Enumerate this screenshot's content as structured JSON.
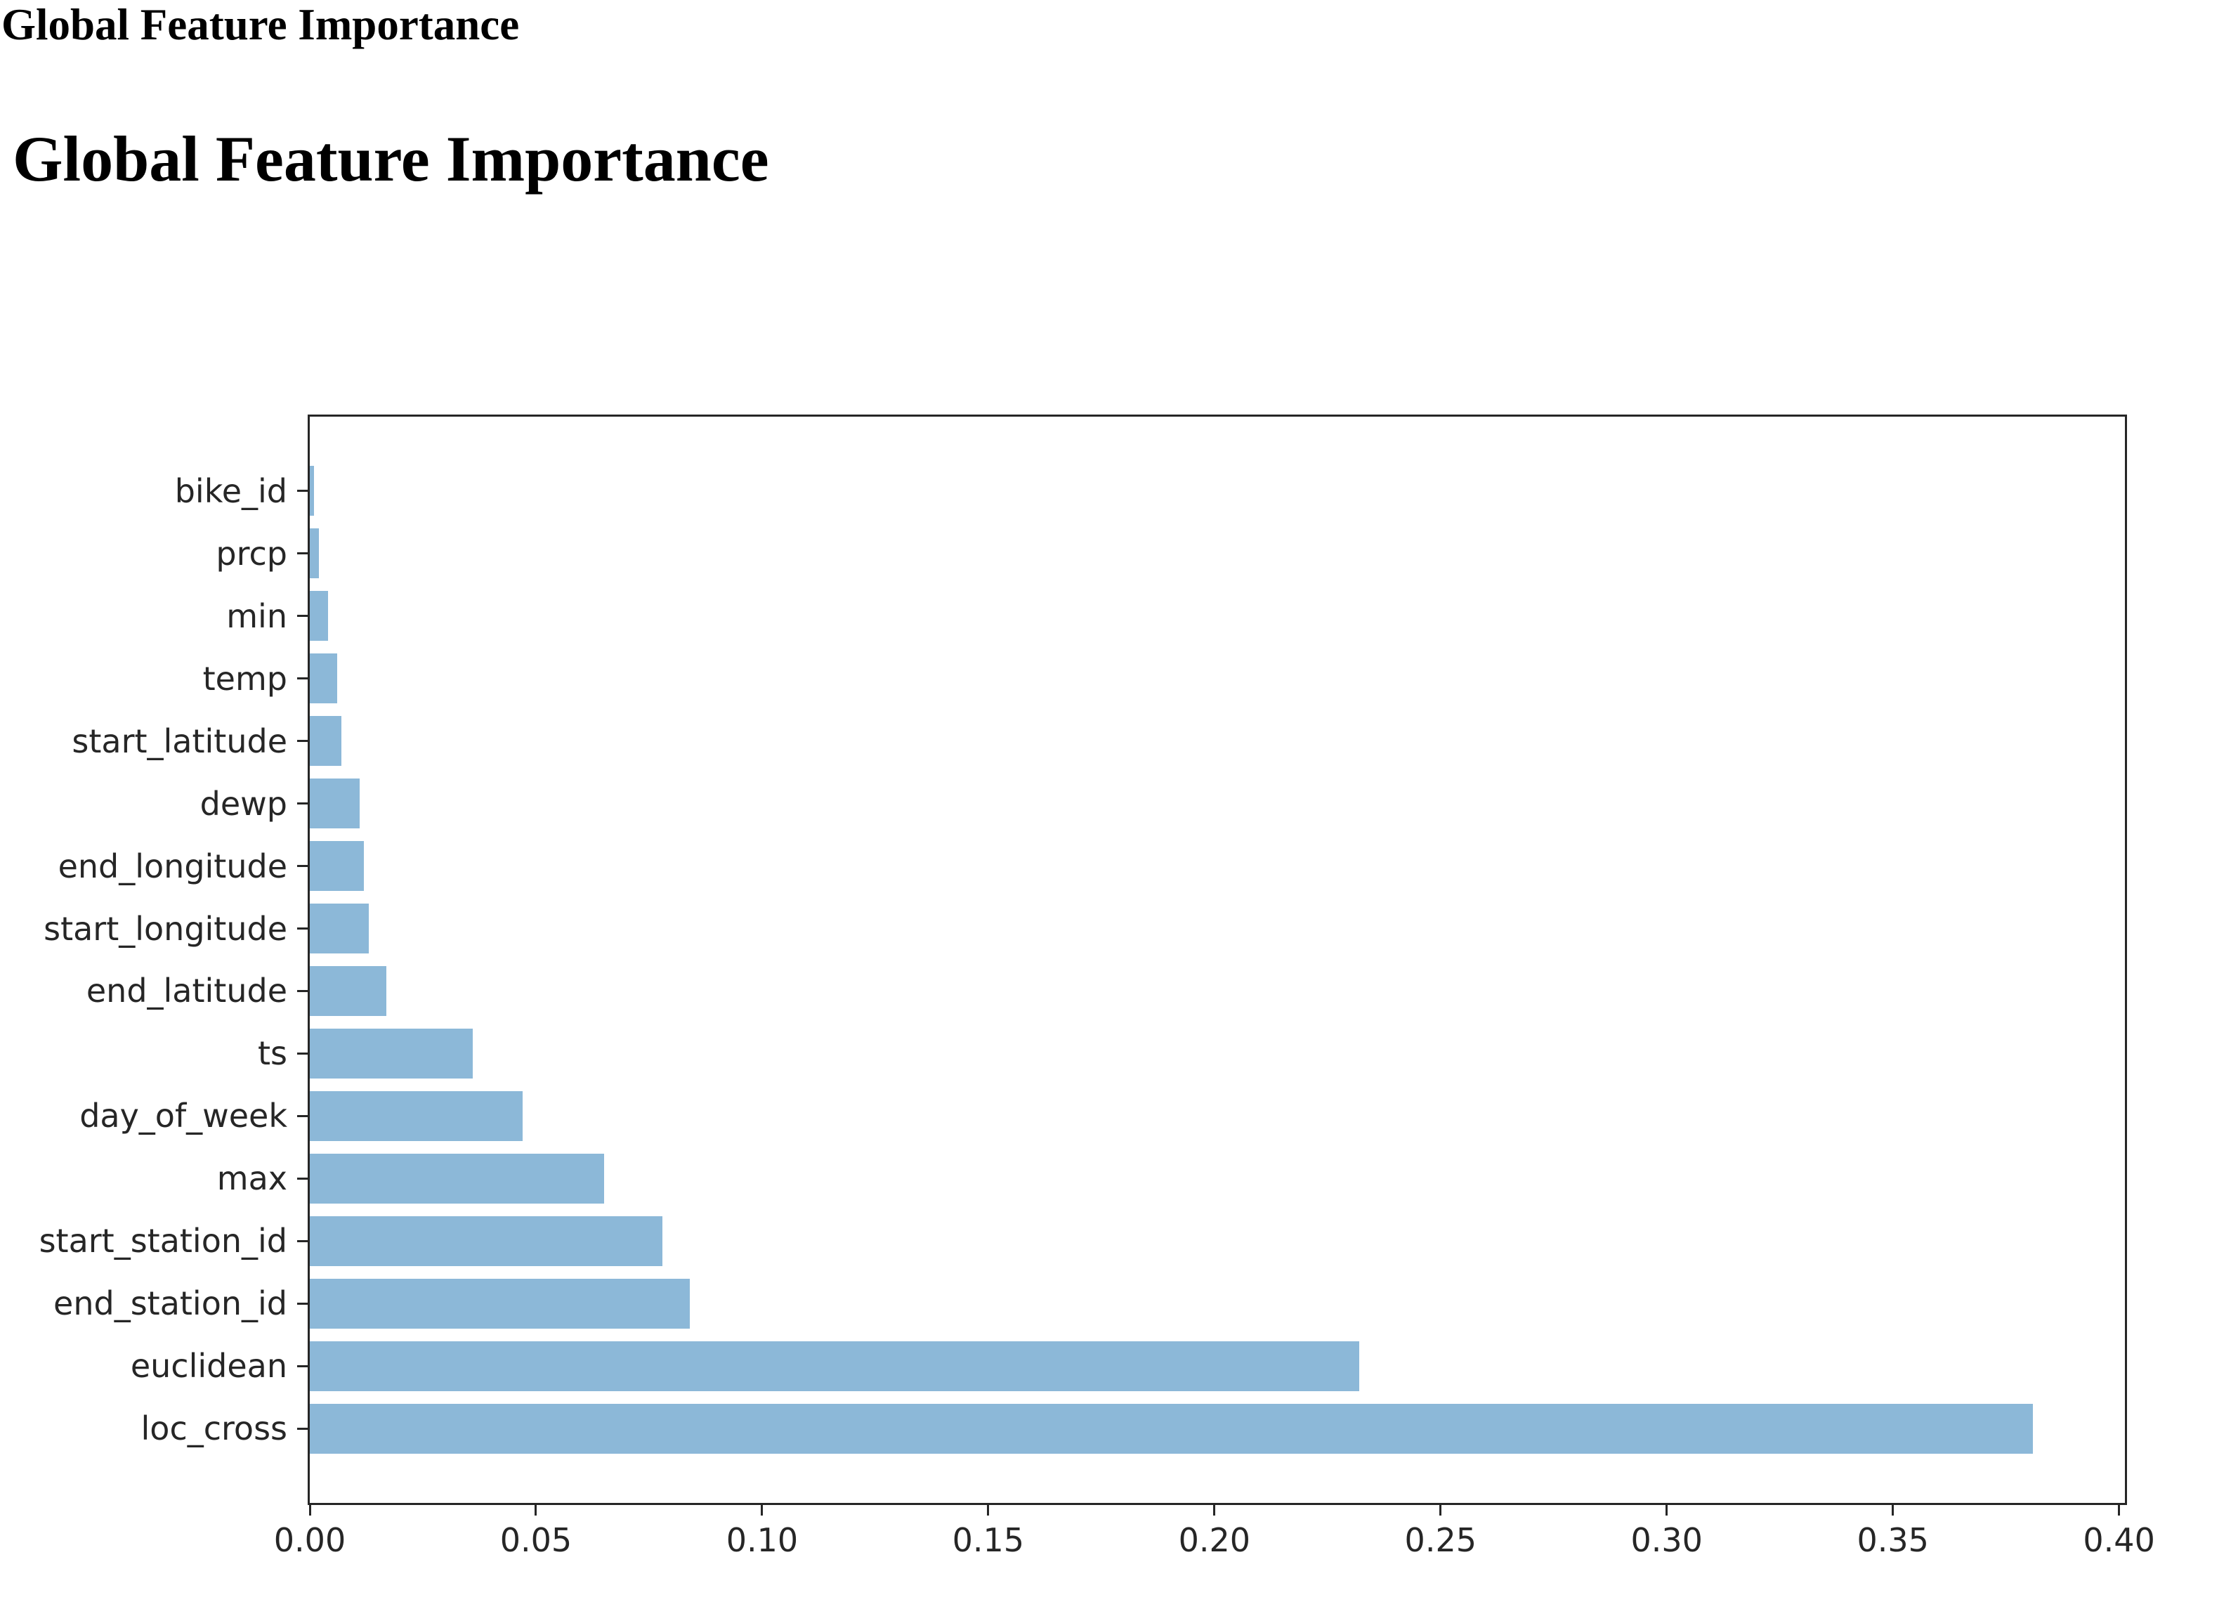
{
  "header": {
    "title": "Global Feature Importance"
  },
  "heading": {
    "title": "Global Feature Importance"
  },
  "chart_data": {
    "type": "bar",
    "orientation": "horizontal",
    "title": "",
    "xlabel": "",
    "ylabel": "",
    "categories_top_to_bottom": [
      "bike_id",
      "prcp",
      "min",
      "temp",
      "start_latitude",
      "dewp",
      "end_longitude",
      "start_longitude",
      "end_latitude",
      "ts",
      "day_of_week",
      "max",
      "start_station_id",
      "end_station_id",
      "euclidean",
      "loc_cross"
    ],
    "values": [
      0.001,
      0.002,
      0.004,
      0.006,
      0.007,
      0.011,
      0.012,
      0.013,
      0.017,
      0.036,
      0.047,
      0.065,
      0.078,
      0.084,
      0.232,
      0.381
    ],
    "xlim": [
      0,
      0.4013
    ],
    "xticks": [
      0.0,
      0.05,
      0.1,
      0.15,
      0.2,
      0.25,
      0.3,
      0.35,
      0.4
    ],
    "xtick_labels": [
      "0.00",
      "0.05",
      "0.10",
      "0.15",
      "0.20",
      "0.25",
      "0.30",
      "0.35",
      "0.40"
    ],
    "grid": false,
    "legend": false,
    "bar_color": "#8cb8d8",
    "axis_color": "#262626",
    "tick_label_color": "#262626"
  }
}
